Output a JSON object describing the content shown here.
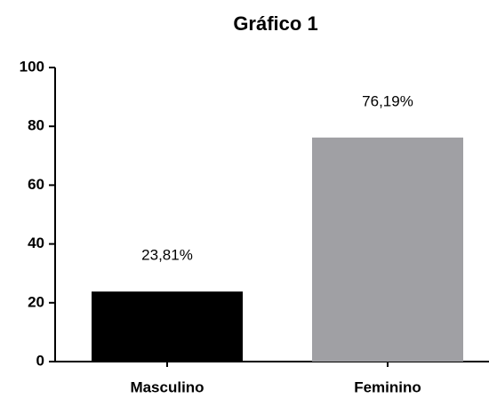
{
  "chart_data": {
    "type": "bar",
    "title": "Gráfico 1",
    "categories": [
      "Masculino",
      "Feminino"
    ],
    "values": [
      23.81,
      76.19
    ],
    "value_labels": [
      "23,81%",
      "76,19%"
    ],
    "colors": [
      "#000000",
      "#a0a0a4"
    ],
    "ylim": [
      0,
      100
    ],
    "yticks": [
      0,
      20,
      40,
      60,
      80,
      100
    ],
    "grid": false
  }
}
